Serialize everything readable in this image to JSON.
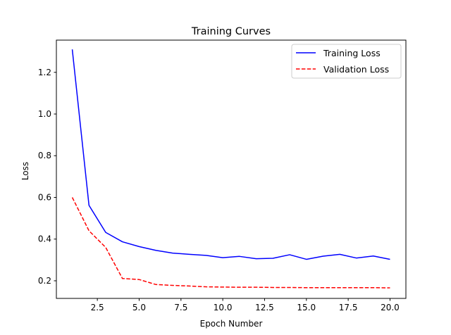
{
  "chart_data": {
    "type": "line",
    "title": "Training Curves",
    "xlabel": "Epoch Number",
    "ylabel": "Loss",
    "xlim": [
      0.05,
      20.95
    ],
    "ylim": [
      0.1155,
      1.3545
    ],
    "xticks": [
      2.5,
      5.0,
      7.5,
      10.0,
      12.5,
      15.0,
      17.5,
      20.0
    ],
    "xtick_labels": [
      "2.5",
      "5.0",
      "7.5",
      "10.0",
      "12.5",
      "15.0",
      "17.5",
      "20.0"
    ],
    "yticks": [
      0.2,
      0.4,
      0.6,
      0.8,
      1.0,
      1.2
    ],
    "ytick_labels": [
      "0.2",
      "0.4",
      "0.6",
      "0.8",
      "1.0",
      "1.2"
    ],
    "grid": false,
    "legend_position": "top-right",
    "x": [
      1,
      2,
      3,
      4,
      5,
      6,
      7,
      8,
      9,
      10,
      11,
      12,
      13,
      14,
      15,
      16,
      17,
      18,
      19,
      20
    ],
    "series": [
      {
        "name": "Training Loss",
        "color": "#0000ff",
        "style": "solid",
        "values": [
          1.31,
          0.562,
          0.432,
          0.387,
          0.364,
          0.346,
          0.333,
          0.327,
          0.322,
          0.311,
          0.317,
          0.306,
          0.308,
          0.325,
          0.303,
          0.318,
          0.327,
          0.309,
          0.319,
          0.303
        ]
      },
      {
        "name": "Validation Loss",
        "color": "#ff0000",
        "style": "dashed",
        "values": [
          0.6,
          0.44,
          0.36,
          0.211,
          0.206,
          0.182,
          0.178,
          0.175,
          0.171,
          0.17,
          0.169,
          0.169,
          0.168,
          0.168,
          0.167,
          0.167,
          0.167,
          0.167,
          0.167,
          0.166
        ]
      }
    ]
  }
}
